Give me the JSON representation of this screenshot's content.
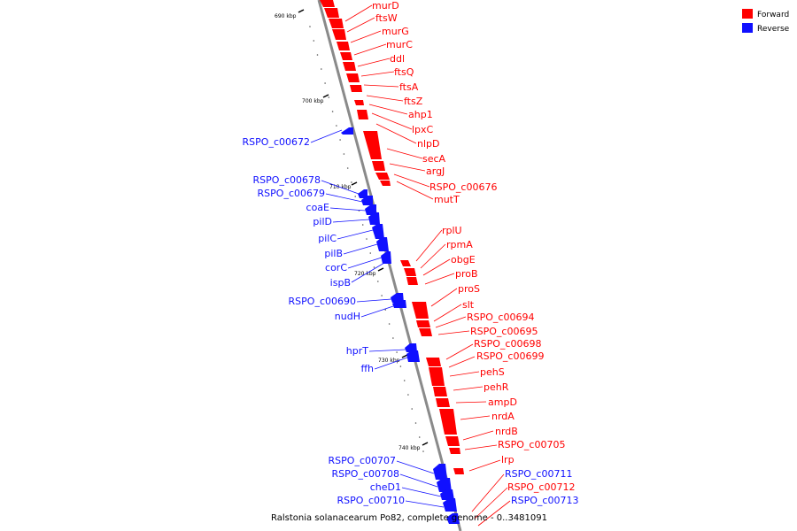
{
  "colors": {
    "forward": "#ff0000",
    "forward_dark": "#b00000",
    "reverse": "#1010ff",
    "reverse_dark": "#0000a0",
    "backbone": "#8a8a8a"
  },
  "legend": {
    "forward_label": "Forward",
    "reverse_label": "Reverse"
  },
  "caption": "Ralstonia solanacearum Po82, complete genome - 0..3481091",
  "ticks": [
    {
      "label": "690 kbp"
    },
    {
      "label": "700 kbp"
    },
    {
      "label": "710 kbp"
    },
    {
      "label": "720 kbp"
    },
    {
      "label": "730 kbp"
    },
    {
      "label": "740 kbp"
    }
  ],
  "forward_genes": [
    "murD",
    "ftsW",
    "murG",
    "murC",
    "ddl",
    "ftsQ",
    "ftsA",
    "ftsZ",
    "ahp1",
    "lpxC",
    "nlpD",
    "secA",
    "argJ",
    "RSPO_c00676",
    "mutT",
    "rplU",
    "rpmA",
    "obgE",
    "proB",
    "proS",
    "slt",
    "RSPO_c00694",
    "RSPO_c00695",
    "RSPO_c00698",
    "RSPO_c00699",
    "pehS",
    "pehR",
    "ampD",
    "nrdA",
    "nrdB",
    "RSPO_c00705",
    "lrp",
    "RSPO_c00711",
    "RSPO_c00712",
    "RSPO_c00713"
  ],
  "reverse_genes": [
    "RSPO_c00672",
    "RSPO_c00678",
    "RSPO_c00679",
    "coaE",
    "pilD",
    "pilC",
    "pilB",
    "corC",
    "ispB",
    "RSPO_c00690",
    "nudH",
    "hprT",
    "ffh",
    "RSPO_c00707",
    "RSPO_c00708",
    "cheD1",
    "RSPO_c00710"
  ]
}
